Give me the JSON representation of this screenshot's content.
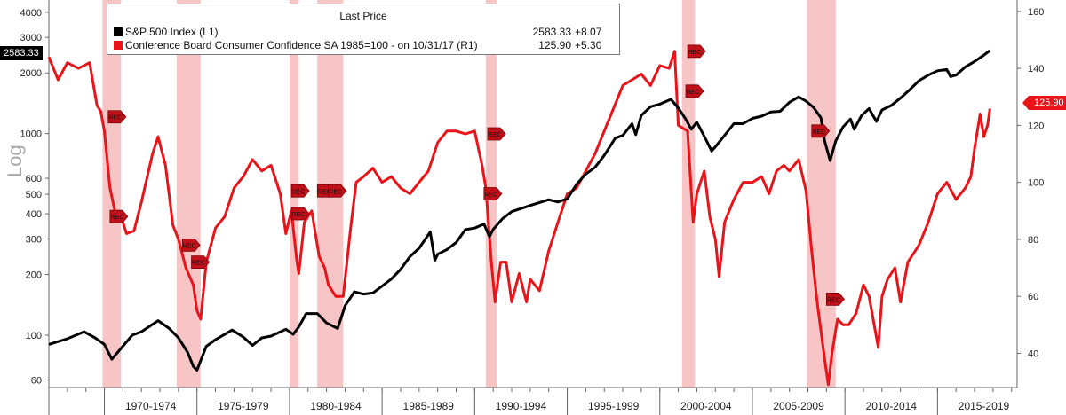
{
  "legend": {
    "title": "Last Price",
    "series": [
      {
        "name": "S&P 500 Index  (L1)",
        "value": "2583.33",
        "change": "+8.07",
        "color": "#000000"
      },
      {
        "name": "Conference Board Consumer Confidence SA 1985=100 -  on 10/31/17  (R1)",
        "value": "125.90",
        "change": "+5.30",
        "color": "#e8141a"
      }
    ]
  },
  "last_value_flags": {
    "left": "2583.33",
    "right": "125.90"
  },
  "y_axis_label": "Log",
  "recession_marker_label": "REC",
  "chart_data": {
    "type": "line",
    "x_axis": {
      "range": [
        1967.0,
        2019.3
      ],
      "tick_labels": [
        "1970-1974",
        "1975-1979",
        "1980-1984",
        "1985-1989",
        "1990-1994",
        "1995-1999",
        "2000-2004",
        "2005-2009",
        "2010-2014",
        "2015-2019"
      ],
      "label_years": [
        1972.5,
        1977.5,
        1982.5,
        1987.5,
        1992.5,
        1997.5,
        2002.5,
        2007.5,
        2012.5,
        2017.5
      ],
      "separators": [
        1970,
        1975,
        1980,
        1985,
        1990,
        1995,
        2000,
        2005,
        2010,
        2015
      ]
    },
    "left_axis": {
      "scale": "log",
      "range": [
        55,
        4600
      ],
      "ticks": [
        60,
        100,
        200,
        300,
        400,
        500,
        600,
        1000,
        2000,
        3000,
        4000
      ]
    },
    "right_axis": {
      "scale": "linear",
      "range": [
        28,
        164
      ],
      "ticks": [
        40,
        60,
        80,
        100,
        120,
        140,
        160
      ]
    },
    "recessions": [
      [
        1969.9,
        1970.9
      ],
      [
        1973.9,
        1975.2
      ],
      [
        1980.0,
        1980.5
      ],
      [
        1981.5,
        1982.9
      ],
      [
        1990.6,
        1991.2
      ],
      [
        2001.2,
        2001.9
      ],
      [
        2007.95,
        2009.5
      ]
    ],
    "rec_markers": [
      {
        "x": 1970.3,
        "axis": "right",
        "y": 123
      },
      {
        "x": 1970.4,
        "axis": "right",
        "y": 88
      },
      {
        "x": 1974.3,
        "axis": "right",
        "y": 78
      },
      {
        "x": 1974.8,
        "axis": "right",
        "y": 72
      },
      {
        "x": 1980.2,
        "axis": "right",
        "y": 89
      },
      {
        "x": 1980.2,
        "axis": "right",
        "y": 97
      },
      {
        "x": 1981.6,
        "axis": "right",
        "y": 97
      },
      {
        "x": 1982.2,
        "axis": "right",
        "y": 97
      },
      {
        "x": 1990.8,
        "axis": "right",
        "y": 117
      },
      {
        "x": 1990.6,
        "axis": "right",
        "y": 96
      },
      {
        "x": 2001.6,
        "axis": "right",
        "y": 146
      },
      {
        "x": 2001.5,
        "axis": "right",
        "y": 132
      },
      {
        "x": 2008.3,
        "axis": "right",
        "y": 118
      },
      {
        "x": 2009.1,
        "axis": "right",
        "y": 59
      }
    ],
    "series": [
      {
        "name": "S&P 500 Index  (L1)",
        "axis": "left",
        "color": "#000000",
        "points": [
          [
            1967.0,
            90
          ],
          [
            1968.0,
            96
          ],
          [
            1968.9,
            104
          ],
          [
            1969.5,
            97
          ],
          [
            1970.0,
            90
          ],
          [
            1970.4,
            76
          ],
          [
            1970.9,
            86
          ],
          [
            1971.5,
            100
          ],
          [
            1972.0,
            104
          ],
          [
            1972.9,
            118
          ],
          [
            1973.5,
            108
          ],
          [
            1974.0,
            97
          ],
          [
            1974.5,
            82
          ],
          [
            1974.8,
            70
          ],
          [
            1975.0,
            67
          ],
          [
            1975.5,
            88
          ],
          [
            1976.0,
            95
          ],
          [
            1976.9,
            106
          ],
          [
            1977.5,
            98
          ],
          [
            1978.0,
            89
          ],
          [
            1978.5,
            97
          ],
          [
            1979.0,
            99
          ],
          [
            1979.8,
            107
          ],
          [
            1980.2,
            101
          ],
          [
            1980.5,
            110
          ],
          [
            1980.9,
            128
          ],
          [
            1981.5,
            128
          ],
          [
            1982.0,
            115
          ],
          [
            1982.6,
            108
          ],
          [
            1983.0,
            140
          ],
          [
            1983.5,
            164
          ],
          [
            1984.0,
            160
          ],
          [
            1984.5,
            162
          ],
          [
            1985.0,
            175
          ],
          [
            1985.5,
            190
          ],
          [
            1986.0,
            212
          ],
          [
            1986.5,
            245
          ],
          [
            1987.0,
            270
          ],
          [
            1987.6,
            325
          ],
          [
            1987.85,
            235
          ],
          [
            1988.0,
            252
          ],
          [
            1988.5,
            266
          ],
          [
            1989.0,
            288
          ],
          [
            1989.5,
            334
          ],
          [
            1990.0,
            340
          ],
          [
            1990.5,
            356
          ],
          [
            1990.8,
            308
          ],
          [
            1991.0,
            335
          ],
          [
            1991.5,
            378
          ],
          [
            1992.0,
            410
          ],
          [
            1993.0,
            440
          ],
          [
            1994.0,
            470
          ],
          [
            1994.5,
            458
          ],
          [
            1995.0,
            475
          ],
          [
            1995.5,
            560
          ],
          [
            1996.0,
            630
          ],
          [
            1996.5,
            680
          ],
          [
            1997.0,
            780
          ],
          [
            1997.6,
            950
          ],
          [
            1998.0,
            980
          ],
          [
            1998.5,
            1120
          ],
          [
            1998.7,
            990
          ],
          [
            1999.0,
            1230
          ],
          [
            1999.5,
            1360
          ],
          [
            2000.0,
            1400
          ],
          [
            2000.6,
            1480
          ],
          [
            2001.0,
            1340
          ],
          [
            2001.4,
            1180
          ],
          [
            2001.7,
            1050
          ],
          [
            2002.0,
            1140
          ],
          [
            2002.5,
            930
          ],
          [
            2002.8,
            820
          ],
          [
            2003.0,
            860
          ],
          [
            2003.5,
            980
          ],
          [
            2004.0,
            1120
          ],
          [
            2004.5,
            1120
          ],
          [
            2005.0,
            1190
          ],
          [
            2005.5,
            1220
          ],
          [
            2006.0,
            1280
          ],
          [
            2006.5,
            1290
          ],
          [
            2007.0,
            1430
          ],
          [
            2007.5,
            1520
          ],
          [
            2007.9,
            1450
          ],
          [
            2008.3,
            1350
          ],
          [
            2008.7,
            1200
          ],
          [
            2008.9,
            920
          ],
          [
            2009.2,
            735
          ],
          [
            2009.5,
            920
          ],
          [
            2009.9,
            1080
          ],
          [
            2010.3,
            1180
          ],
          [
            2010.5,
            1050
          ],
          [
            2010.9,
            1230
          ],
          [
            2011.3,
            1330
          ],
          [
            2011.7,
            1150
          ],
          [
            2012.0,
            1310
          ],
          [
            2012.5,
            1380
          ],
          [
            2013.0,
            1500
          ],
          [
            2013.5,
            1650
          ],
          [
            2014.0,
            1830
          ],
          [
            2014.5,
            1950
          ],
          [
            2015.0,
            2050
          ],
          [
            2015.5,
            2080
          ],
          [
            2015.7,
            1920
          ],
          [
            2016.0,
            1950
          ],
          [
            2016.5,
            2140
          ],
          [
            2017.0,
            2280
          ],
          [
            2017.5,
            2450
          ],
          [
            2017.83,
            2583.33
          ]
        ]
      },
      {
        "name": "Conference Board Consumer Confidence SA 1985=100 -  on 10/31/17  (R1)",
        "axis": "right",
        "color": "#e8141a",
        "points": [
          [
            1967.0,
            144
          ],
          [
            1967.5,
            136
          ],
          [
            1968.0,
            142
          ],
          [
            1968.6,
            140
          ],
          [
            1969.2,
            142
          ],
          [
            1969.6,
            127
          ],
          [
            1969.8,
            125
          ],
          [
            1970.0,
            118
          ],
          [
            1970.3,
            98
          ],
          [
            1970.6,
            89
          ],
          [
            1970.9,
            88
          ],
          [
            1971.2,
            82
          ],
          [
            1971.6,
            83
          ],
          [
            1972.0,
            93
          ],
          [
            1972.6,
            110
          ],
          [
            1972.9,
            116
          ],
          [
            1973.3,
            106
          ],
          [
            1973.7,
            85
          ],
          [
            1974.0,
            80
          ],
          [
            1974.4,
            70
          ],
          [
            1974.8,
            64
          ],
          [
            1975.0,
            55
          ],
          [
            1975.2,
            52
          ],
          [
            1975.5,
            72
          ],
          [
            1976.0,
            84
          ],
          [
            1976.5,
            88
          ],
          [
            1977.0,
            98
          ],
          [
            1977.5,
            102
          ],
          [
            1978.0,
            108
          ],
          [
            1978.5,
            104
          ],
          [
            1979.0,
            106
          ],
          [
            1979.5,
            96
          ],
          [
            1979.8,
            82
          ],
          [
            1980.1,
            90
          ],
          [
            1980.4,
            72
          ],
          [
            1980.5,
            68
          ],
          [
            1980.8,
            86
          ],
          [
            1981.2,
            90
          ],
          [
            1981.6,
            74
          ],
          [
            1981.9,
            70
          ],
          [
            1982.1,
            64
          ],
          [
            1982.5,
            60
          ],
          [
            1982.9,
            60
          ],
          [
            1983.3,
            84
          ],
          [
            1983.6,
            100
          ],
          [
            1984.0,
            102
          ],
          [
            1984.5,
            105
          ],
          [
            1985.0,
            100
          ],
          [
            1985.5,
            102
          ],
          [
            1986.0,
            98
          ],
          [
            1986.5,
            96
          ],
          [
            1987.0,
            100
          ],
          [
            1987.5,
            104
          ],
          [
            1988.0,
            114
          ],
          [
            1988.5,
            118
          ],
          [
            1989.0,
            118
          ],
          [
            1989.5,
            117
          ],
          [
            1990.0,
            118
          ],
          [
            1990.4,
            106
          ],
          [
            1990.6,
            98
          ],
          [
            1990.9,
            72
          ],
          [
            1991.1,
            58
          ],
          [
            1991.4,
            72
          ],
          [
            1991.7,
            72
          ],
          [
            1992.0,
            58
          ],
          [
            1992.4,
            68
          ],
          [
            1992.8,
            58
          ],
          [
            1993.0,
            66
          ],
          [
            1993.5,
            62
          ],
          [
            1994.0,
            76
          ],
          [
            1994.5,
            86
          ],
          [
            1995.0,
            96
          ],
          [
            1995.5,
            98
          ],
          [
            1996.0,
            104
          ],
          [
            1996.5,
            110
          ],
          [
            1997.0,
            118
          ],
          [
            1997.5,
            126
          ],
          [
            1998.0,
            134
          ],
          [
            1998.5,
            136
          ],
          [
            1999.0,
            138
          ],
          [
            1999.5,
            134
          ],
          [
            2000.0,
            141
          ],
          [
            2000.5,
            140
          ],
          [
            2000.8,
            146
          ],
          [
            2001.0,
            120
          ],
          [
            2001.5,
            118
          ],
          [
            2001.8,
            86
          ],
          [
            2002.0,
            96
          ],
          [
            2002.4,
            104
          ],
          [
            2002.7,
            88
          ],
          [
            2003.0,
            80
          ],
          [
            2003.2,
            67
          ],
          [
            2003.5,
            86
          ],
          [
            2004.0,
            94
          ],
          [
            2004.5,
            100
          ],
          [
            2005.0,
            100
          ],
          [
            2005.5,
            102
          ],
          [
            2005.9,
            96
          ],
          [
            2006.3,
            104
          ],
          [
            2006.7,
            106
          ],
          [
            2007.0,
            104
          ],
          [
            2007.5,
            108
          ],
          [
            2007.9,
            97
          ],
          [
            2008.2,
            76
          ],
          [
            2008.5,
            58
          ],
          [
            2008.9,
            38
          ],
          [
            2009.1,
            29
          ],
          [
            2009.3,
            40
          ],
          [
            2009.6,
            52
          ],
          [
            2009.9,
            50
          ],
          [
            2010.2,
            50
          ],
          [
            2010.6,
            54
          ],
          [
            2011.0,
            64
          ],
          [
            2011.3,
            60
          ],
          [
            2011.8,
            42
          ],
          [
            2012.0,
            60
          ],
          [
            2012.3,
            66
          ],
          [
            2012.7,
            70
          ],
          [
            2013.0,
            58
          ],
          [
            2013.4,
            72
          ],
          [
            2013.8,
            76
          ],
          [
            2014.0,
            78
          ],
          [
            2014.5,
            86
          ],
          [
            2015.0,
            96
          ],
          [
            2015.5,
            100
          ],
          [
            2016.0,
            94
          ],
          [
            2016.5,
            98
          ],
          [
            2016.8,
            102
          ],
          [
            2017.0,
            112
          ],
          [
            2017.3,
            124
          ],
          [
            2017.5,
            116
          ],
          [
            2017.7,
            120
          ],
          [
            2017.83,
            125.9
          ]
        ]
      }
    ]
  }
}
